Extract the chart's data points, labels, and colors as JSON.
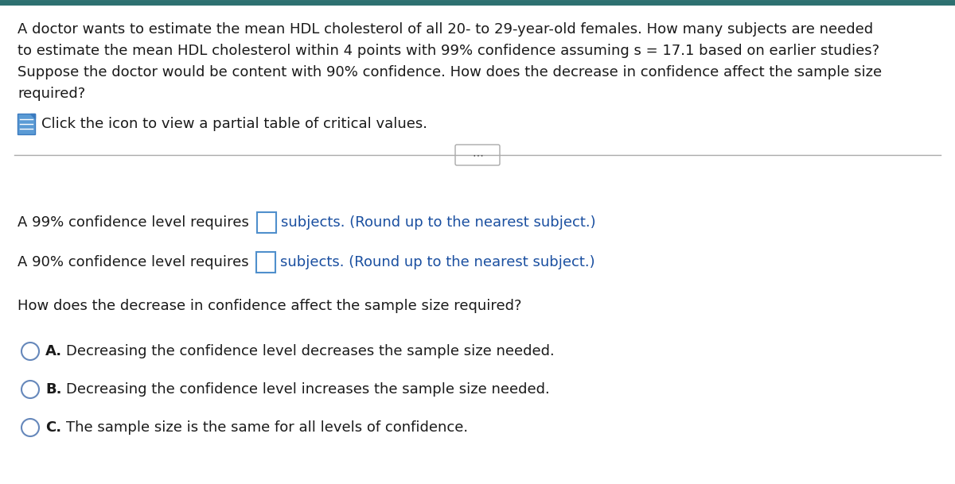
{
  "bg_color": "#ffffff",
  "border_top_color": "#2d7070",
  "text_color_black": "#1a1a1a",
  "text_color_blue": "#1a4fa0",
  "question_lines": [
    "A doctor wants to estimate the mean HDL cholesterol of all 20- to 29-year-old females. How many subjects are needed",
    "to estimate the mean HDL cholesterol within 4 points with 99% confidence assuming s = 17.1 based on earlier studies?",
    "Suppose the doctor would be content with 90% confidence. How does the decrease in confidence affect the sample size",
    "required?"
  ],
  "icon_text": "Click the icon to view a partial table of critical values.",
  "line1_black": "A 99% confidence level requires ",
  "line1_blue": "subjects. (Round up to the nearest subject.)",
  "line2_black": "A 90% confidence level requires ",
  "line2_blue": "subjects. (Round up to the nearest subject.)",
  "question2": "How does the decrease in confidence affect the sample size required?",
  "options": [
    {
      "letter": "A.",
      "text": "  Decreasing the confidence level decreases the sample size needed."
    },
    {
      "letter": "B.",
      "text": "  Decreasing the confidence level increases the sample size needed."
    },
    {
      "letter": "C.",
      "text": "  The sample size is the same for all levels of confidence."
    }
  ],
  "box_color": "#4f8fcc",
  "circle_color": "#6688bb",
  "separator_color": "#aaaaaa",
  "icon_color": "#5b9bd5",
  "icon_dark": "#3a7abf"
}
